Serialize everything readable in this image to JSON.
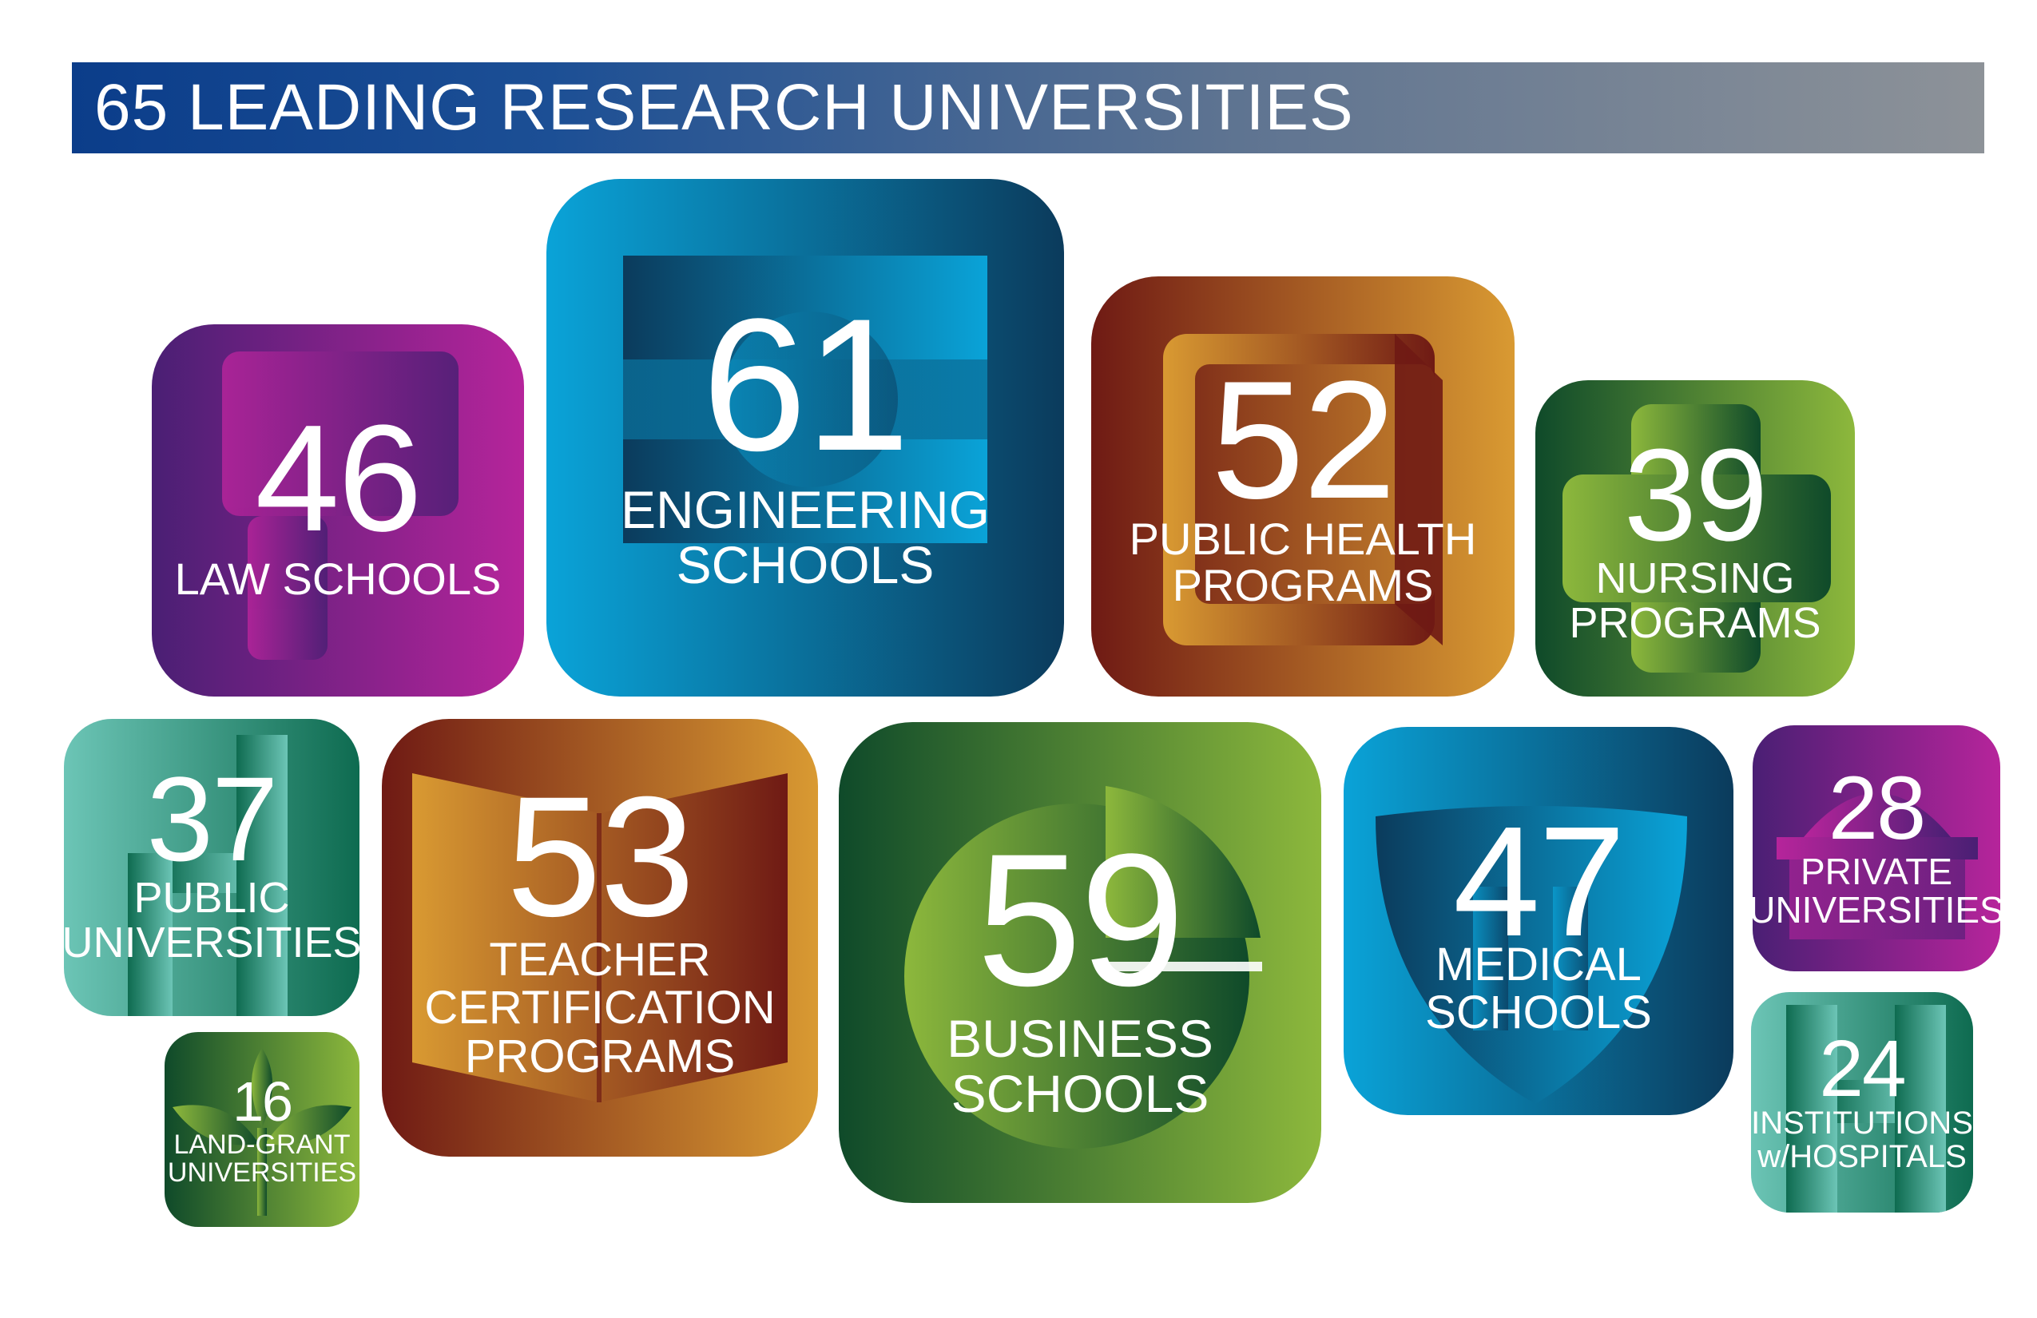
{
  "title": "65 LEADING RESEARCH UNIVERSITIES",
  "tiles": {
    "law": {
      "number": "46",
      "line1": "LAW SCHOOLS",
      "icon": "scroll-icon"
    },
    "engineering": {
      "number": "61",
      "line1": "ENGINEERING",
      "line2": "SCHOOLS",
      "icon": "gear-block-icon"
    },
    "public_health": {
      "number": "52",
      "line1": "PUBLIC HEALTH",
      "line2": "PROGRAMS",
      "icon": "book-icon"
    },
    "nursing": {
      "number": "39",
      "line1": "NURSING",
      "line2": "PROGRAMS",
      "icon": "cross-icon"
    },
    "public_universities": {
      "number": "37",
      "line1": "PUBLIC",
      "line2": "UNIVERSITIES",
      "icon": "building-icon"
    },
    "teacher": {
      "number": "53",
      "line1": "TEACHER",
      "line2": "CERTIFICATION",
      "line3": "PROGRAMS",
      "icon": "open-book-icon"
    },
    "business": {
      "number": "59",
      "line1": "BUSINESS",
      "line2": "SCHOOLS",
      "icon": "pie-chart-icon"
    },
    "medical": {
      "number": "47",
      "line1": "MEDICAL",
      "line2": "SCHOOLS",
      "icon": "shield-icon"
    },
    "private": {
      "number": "28",
      "line1": "PRIVATE",
      "line2": "UNIVERSITIES",
      "icon": "dome-building-icon"
    },
    "land_grant": {
      "number": "16",
      "line1": "LAND-GRANT",
      "line2": "UNIVERSITIES",
      "icon": "sprout-icon"
    },
    "hospitals": {
      "number": "24",
      "line1": "INSTITUTIONS",
      "line2": "w/HOSPITALS",
      "icon": "h-letter-icon"
    }
  },
  "colors": {
    "banner_start": "#0b3d8a",
    "banner_end": "#8d9298",
    "purple_a": "#4a1f74",
    "purple_b": "#b6249b",
    "blue_a": "#0aa3d8",
    "blue_b": "#0b3b5c",
    "amber_a": "#6f1a14",
    "amber_b": "#d99a32",
    "green_a": "#0f4a2a",
    "green_b": "#8db83c",
    "teal_a": "#6cc5b6",
    "teal_b": "#0e6b50"
  }
}
